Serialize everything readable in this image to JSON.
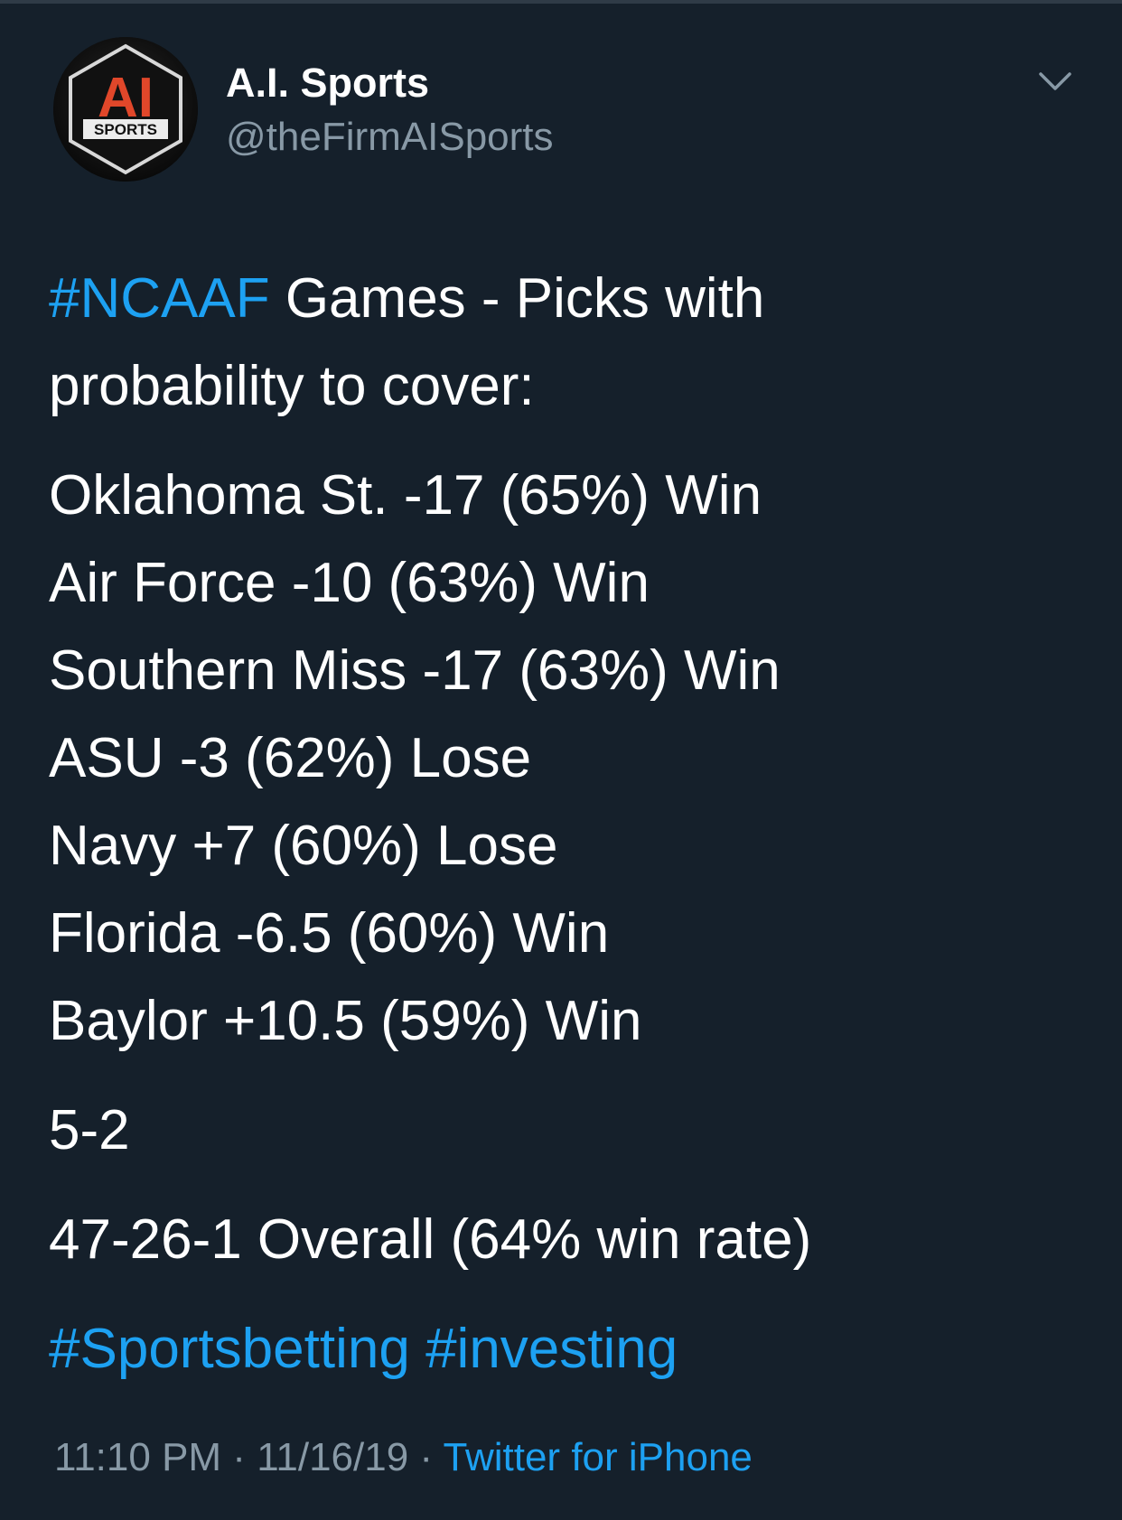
{
  "header": {
    "display_name": "A.I. Sports",
    "handle": "@theFirmAISports",
    "avatar": {
      "logo_main": "AI",
      "logo_sub": "SPORTS"
    },
    "menu_icon": "chevron-down-icon"
  },
  "tweet": {
    "intro_hashtag": "#NCAAF",
    "intro_text_1": " Games - Picks with",
    "intro_text_2": "probability to cover:",
    "picks": [
      "Oklahoma St. -17 (65%) Win",
      "Air Force -10 (63%) Win",
      "Southern Miss -17 (63%) Win",
      "ASU -3 (62%) Lose",
      "Navy +7 (60%) Lose",
      "Florida -6.5 (60%) Win",
      "Baylor +10.5 (59%) Win"
    ],
    "record": "5-2",
    "overall": "47-26-1 Overall (64% win rate)",
    "hashtags": [
      "#Sportsbetting",
      "#investing"
    ]
  },
  "meta": {
    "time": "11:10 PM",
    "date": "11/16/19",
    "separator": " · ",
    "source": "Twitter for iPhone"
  },
  "colors": {
    "background": "#15202b",
    "text": "#ffffff",
    "secondary": "#8899a6",
    "link": "#1da1f2",
    "logo_accent": "#e0472a"
  }
}
